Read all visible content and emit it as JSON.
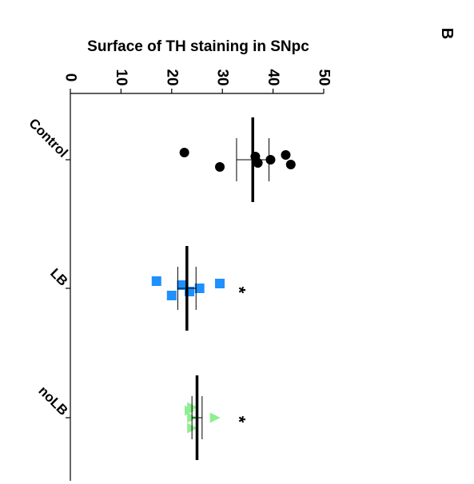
{
  "panel_label": "B",
  "chart_data": {
    "type": "scatter",
    "title": "",
    "ylabel": "Surface of TH staining in SNpc",
    "xlabel": "",
    "ylim": [
      0,
      50
    ],
    "yticks": [
      0,
      10,
      20,
      30,
      40,
      50
    ],
    "grid": false,
    "orientation": "rotated 90 degrees clockwise (value axis along top edge)",
    "categories": [
      "Control",
      "LB",
      "noLB"
    ],
    "series": [
      {
        "name": "Control",
        "marker": "circle",
        "color": "#000000",
        "points": [
          22.5,
          29.5,
          36.5,
          37,
          39.5,
          42.5,
          43.5
        ],
        "mean": 36,
        "sem": 3.2,
        "significance": ""
      },
      {
        "name": "LB",
        "marker": "square",
        "color": "#1e90ff",
        "points": [
          17,
          20,
          22,
          23.5,
          25.5,
          29.5
        ],
        "mean": 23,
        "sem": 1.8,
        "significance": "*"
      },
      {
        "name": "noLB",
        "marker": "triangle",
        "color": "#90ee90",
        "points": [
          23.5,
          24,
          24,
          24,
          28.5
        ],
        "mean": 25,
        "sem": 1.0,
        "significance": "*"
      }
    ]
  }
}
